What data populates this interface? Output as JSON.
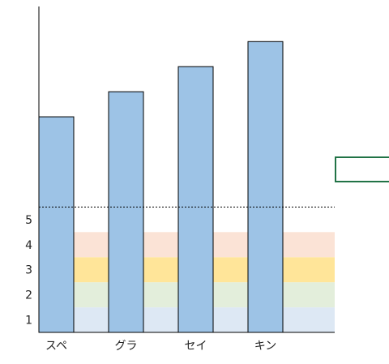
{
  "chart_data": {
    "type": "bar",
    "categories": [
      "スペ",
      "グラ",
      "セイ",
      "キン"
    ],
    "values": [
      9.1,
      10.1,
      11.1,
      12.1
    ],
    "y_ticks": [
      "1",
      "2",
      "3",
      "4",
      "5"
    ],
    "ylim": [
      0.5,
      13.5
    ],
    "reference_line": 5.5,
    "bands": [
      {
        "from": 0.5,
        "to": 1.5,
        "color": "#dde8f4"
      },
      {
        "from": 1.5,
        "to": 2.5,
        "color": "#e3eedb"
      },
      {
        "from": 2.5,
        "to": 3.5,
        "color": "#ffe599"
      },
      {
        "from": 3.5,
        "to": 4.5,
        "color": "#fbe3d6"
      }
    ],
    "bar_color": "#9dc3e6",
    "bar_edge_color": "#000000",
    "reference_line_style": "dotted",
    "legend": "none",
    "grid": false
  },
  "selection_color": "#217346"
}
